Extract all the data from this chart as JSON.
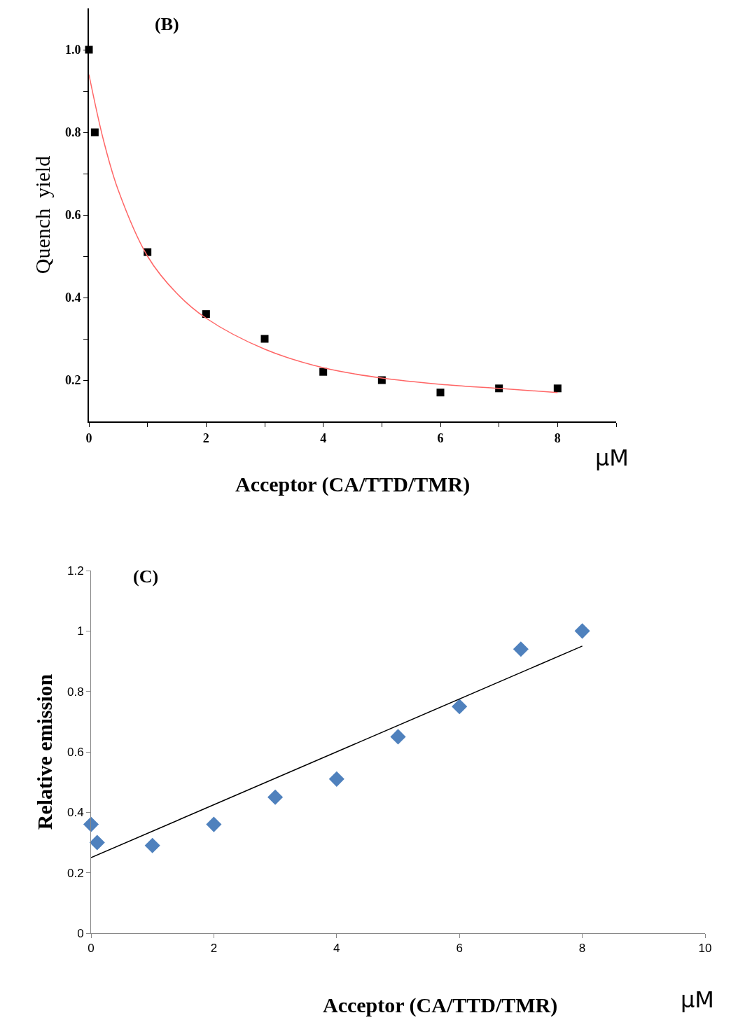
{
  "chart_data": [
    {
      "type": "scatter",
      "title": "(B)",
      "xlabel": "Acceptor (CA/TTD/TMR)",
      "ylabel": "Quench  yield",
      "annotations": [
        "μM"
      ],
      "xlim": [
        0,
        9
      ],
      "ylim": [
        0.1,
        1.1
      ],
      "xticks": [
        0,
        {
          "value": 1,
          "label": null
        },
        2,
        {
          "value": 3,
          "label": null
        },
        4,
        {
          "value": 5,
          "label": null
        },
        6,
        {
          "value": 7,
          "label": null
        },
        8,
        {
          "value": 9,
          "label": null
        }
      ],
      "yticks": [
        {
          "value": 0.2,
          "label": "0.2"
        },
        {
          "value": 0.3,
          "label": null
        },
        {
          "value": 0.4,
          "label": "0.4"
        },
        {
          "value": 0.5,
          "label": null
        },
        {
          "value": 0.6,
          "label": "0.6"
        },
        {
          "value": 0.7,
          "label": null
        },
        {
          "value": 0.8,
          "label": "0.8"
        },
        {
          "value": 0.9,
          "label": null
        },
        {
          "value": 1.0,
          "label": "1.0"
        }
      ],
      "series": [
        {
          "marker": "square",
          "color": "#000000",
          "x": [
            0,
            0.1,
            1,
            2,
            3,
            4,
            5,
            6,
            7,
            8
          ],
          "values": [
            1.0,
            0.8,
            0.51,
            0.36,
            0.3,
            0.22,
            0.2,
            0.17,
            0.18,
            0.18
          ]
        },
        {
          "type": "line",
          "color": "#ff6666",
          "x": [
            0,
            0.25,
            0.5,
            1,
            1.5,
            2,
            3,
            4,
            5,
            6,
            7,
            8
          ],
          "values": [
            0.94,
            0.78,
            0.66,
            0.5,
            0.41,
            0.35,
            0.275,
            0.23,
            0.205,
            0.19,
            0.18,
            0.17
          ]
        }
      ]
    },
    {
      "type": "scatter",
      "title": "(C)",
      "xlabel": "Acceptor (CA/TTD/TMR)",
      "ylabel": "Relative emission",
      "annotations": [
        "μM"
      ],
      "xlim": [
        0,
        10
      ],
      "ylim": [
        0,
        1.2
      ],
      "xticks": [
        0,
        2,
        4,
        6,
        8,
        10
      ],
      "yticks": [
        0,
        0.2,
        0.4,
        0.6,
        0.8,
        1,
        1.2
      ],
      "series": [
        {
          "marker": "diamond",
          "color": "#4f81bd",
          "x": [
            0,
            0.1,
            1,
            2,
            3,
            4,
            5,
            6,
            7,
            8
          ],
          "values": [
            0.36,
            0.3,
            0.29,
            0.36,
            0.45,
            0.51,
            0.65,
            0.75,
            0.94,
            1.0
          ]
        },
        {
          "type": "line",
          "color": "#000000",
          "x": [
            0,
            8
          ],
          "values": [
            0.25,
            0.95
          ]
        }
      ]
    }
  ]
}
